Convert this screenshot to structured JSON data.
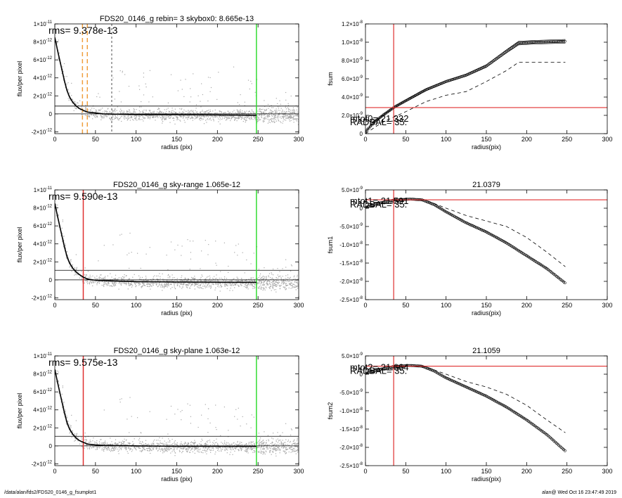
{
  "footer": {
    "left": "/data/alan/fds2/FDS20_0146_g_fsumplot1",
    "right": "alan@  Wed Oct 16 23:47:49 2019"
  },
  "colors": {
    "points": "#a9a9a9",
    "profile": "#000000",
    "marker_red": "#e03030",
    "marker_green": "#33dd33",
    "marker_orange": "#f0a040"
  },
  "chart_data": [
    {
      "type": "scatter",
      "title": "FDS20_0146_g rebin= 3    skybox0:  8.665e-13",
      "annotation": "rms= 9.378e-13",
      "xlabel": "radius (pix)",
      "ylabel": "flux/per pixel",
      "xlim": [
        0,
        300
      ],
      "ylim": [
        -2.2e-12,
        1e-11
      ],
      "xticks": [
        "0",
        "50",
        "100",
        "150",
        "200",
        "250",
        "300"
      ],
      "yticks": [
        {
          "v": 1e-11,
          "m": "1×10",
          "e": "-11"
        },
        {
          "v": 8e-12,
          "m": "8×10",
          "e": "-12"
        },
        {
          "v": 6e-12,
          "m": "6×10",
          "e": "-12"
        },
        {
          "v": 4e-12,
          "m": "4×10",
          "e": "-12"
        },
        {
          "v": 2e-12,
          "m": "2×10",
          "e": "-12"
        },
        {
          "v": 0,
          "m": "0",
          "e": ""
        },
        {
          "v": -2e-12,
          "m": "-2×10",
          "e": "-12"
        }
      ],
      "hlines": [
        8.665e-13,
        0
      ],
      "vlines": [
        {
          "x": 34,
          "color": "orange",
          "dash": true
        },
        {
          "x": 40,
          "color": "orange",
          "dash": true
        },
        {
          "x": 70,
          "color": "gray",
          "dash": true
        },
        {
          "x": 248,
          "color": "green",
          "dash": false
        }
      ],
      "profile": [
        [
          0,
          8.5e-12
        ],
        [
          3,
          7.2e-12
        ],
        [
          6,
          6e-12
        ],
        [
          9,
          4.8e-12
        ],
        [
          12,
          3.6e-12
        ],
        [
          15,
          2.6e-12
        ],
        [
          18,
          1.9e-12
        ],
        [
          22,
          1.3e-12
        ],
        [
          26,
          9e-13
        ],
        [
          30,
          6e-13
        ],
        [
          35,
          4e-13
        ],
        [
          40,
          2e-13
        ],
        [
          50,
          1e-13
        ],
        [
          60,
          0
        ],
        [
          80,
          -5e-14
        ],
        [
          100,
          -8e-14
        ],
        [
          150,
          -1e-13
        ],
        [
          200,
          -1.2e-13
        ],
        [
          248,
          -1.5e-13
        ]
      ]
    },
    {
      "type": "line",
      "title": "",
      "annotation": "mtot0= 21.332",
      "annotation2": "RADBAL=   35.",
      "xlabel": "radius(pix)",
      "ylabel": "fsum",
      "xlim": [
        0,
        300
      ],
      "ylim": [
        0,
        1.2e-08
      ],
      "xticks": [
        "0",
        "50",
        "100",
        "150",
        "200",
        "250",
        "300"
      ],
      "yticks": [
        {
          "v": 1.2e-08,
          "m": "1.2×10",
          "e": "-8"
        },
        {
          "v": 1e-08,
          "m": "1.0×10",
          "e": "-8"
        },
        {
          "v": 8e-09,
          "m": "8.0×10",
          "e": "-9"
        },
        {
          "v": 6e-09,
          "m": "6.0×10",
          "e": "-9"
        },
        {
          "v": 4e-09,
          "m": "4.0×10",
          "e": "-9"
        },
        {
          "v": 2e-09,
          "m": "2.0×10",
          "e": "-9"
        },
        {
          "v": 0,
          "m": "0",
          "e": ""
        }
      ],
      "hline": 2.85e-09,
      "vline": 35,
      "main": [
        [
          0,
          2e-10
        ],
        [
          10,
          1.2e-09
        ],
        [
          20,
          1.9e-09
        ],
        [
          35,
          2.85e-09
        ],
        [
          50,
          3.6e-09
        ],
        [
          75,
          4.8e-09
        ],
        [
          100,
          5.7e-09
        ],
        [
          125,
          6.4e-09
        ],
        [
          150,
          7.4e-09
        ],
        [
          175,
          9e-09
        ],
        [
          190,
          9.9e-09
        ],
        [
          210,
          1e-08
        ],
        [
          248,
          1.01e-08
        ]
      ],
      "dashed": [
        [
          0,
          0
        ],
        [
          20,
          1.2e-09
        ],
        [
          35,
          1.8e-09
        ],
        [
          50,
          2.4e-09
        ],
        [
          75,
          3.5e-09
        ],
        [
          100,
          4.2e-09
        ],
        [
          125,
          4.6e-09
        ],
        [
          150,
          5.7e-09
        ],
        [
          175,
          6.9e-09
        ],
        [
          190,
          7.8e-09
        ],
        [
          210,
          7.8e-09
        ],
        [
          248,
          7.8e-09
        ]
      ]
    },
    {
      "type": "scatter",
      "title": "FDS20_0146_g sky-range  1.065e-12",
      "annotation": "rms= 9.590e-13",
      "xlabel": "radius (pix)",
      "ylabel": "flux/per pixel",
      "xlim": [
        0,
        300
      ],
      "ylim": [
        -2.2e-12,
        1e-11
      ],
      "xticks": [
        "0",
        "50",
        "100",
        "150",
        "200",
        "250",
        "300"
      ],
      "yticks": [
        {
          "v": 1e-11,
          "m": "1×10",
          "e": "-11"
        },
        {
          "v": 8e-12,
          "m": "8×10",
          "e": "-12"
        },
        {
          "v": 6e-12,
          "m": "6×10",
          "e": "-12"
        },
        {
          "v": 4e-12,
          "m": "4×10",
          "e": "-12"
        },
        {
          "v": 2e-12,
          "m": "2×10",
          "e": "-12"
        },
        {
          "v": 0,
          "m": "0",
          "e": ""
        },
        {
          "v": -2e-12,
          "m": "-2×10",
          "e": "-12"
        }
      ],
      "hlines": [
        1.065e-12,
        0
      ],
      "vlines": [
        {
          "x": 35,
          "color": "red",
          "dash": false
        },
        {
          "x": 248,
          "color": "green",
          "dash": false
        }
      ],
      "profile": [
        [
          0,
          8.5e-12
        ],
        [
          3,
          7.2e-12
        ],
        [
          6,
          6e-12
        ],
        [
          9,
          4.8e-12
        ],
        [
          12,
          3.6e-12
        ],
        [
          15,
          2.6e-12
        ],
        [
          18,
          1.9e-12
        ],
        [
          22,
          1.3e-12
        ],
        [
          26,
          9e-13
        ],
        [
          30,
          6e-13
        ],
        [
          35,
          3e-13
        ],
        [
          40,
          1e-13
        ],
        [
          50,
          -5e-14
        ],
        [
          60,
          -1e-13
        ],
        [
          100,
          -2e-13
        ],
        [
          150,
          -2.4e-13
        ],
        [
          200,
          -2.6e-13
        ],
        [
          248,
          -2.8e-13
        ]
      ]
    },
    {
      "type": "line",
      "title": "21.0379",
      "annotation": "mtot1= 21.591",
      "annotation2": "RADBAL=   35.",
      "xlabel": "radius(pix)",
      "ylabel": "fsum1",
      "xlim": [
        0,
        300
      ],
      "ylim": [
        -2.5e-08,
        5e-09
      ],
      "xticks": [
        "0",
        "50",
        "100",
        "150",
        "200",
        "250",
        "300"
      ],
      "yticks": [
        {
          "v": 5e-09,
          "m": "5.0×10",
          "e": "-9"
        },
        {
          "v": 0,
          "m": "0",
          "e": ""
        },
        {
          "v": -5e-09,
          "m": "-5.0×10",
          "e": "-9"
        },
        {
          "v": -1e-08,
          "m": "-1.0×10",
          "e": "-8"
        },
        {
          "v": -1.5e-08,
          "m": "-1.5×10",
          "e": "-8"
        },
        {
          "v": -2e-08,
          "m": "-2.0×10",
          "e": "-8"
        },
        {
          "v": -2.5e-08,
          "m": "-2.5×10",
          "e": "-8"
        }
      ],
      "hline": 2.3e-09,
      "vline": 35,
      "main": [
        [
          0,
          2e-10
        ],
        [
          15,
          1.3e-09
        ],
        [
          35,
          2.2e-09
        ],
        [
          55,
          2.5e-09
        ],
        [
          70,
          2.3e-09
        ],
        [
          85,
          1e-09
        ],
        [
          100,
          -1e-09
        ],
        [
          125,
          -4e-09
        ],
        [
          150,
          -6.5e-09
        ],
        [
          175,
          -9.5e-09
        ],
        [
          200,
          -1.3e-08
        ],
        [
          225,
          -1.65e-08
        ],
        [
          248,
          -2.05e-08
        ]
      ],
      "dashed": [
        [
          0,
          0
        ],
        [
          30,
          1.5e-09
        ],
        [
          55,
          2.3e-09
        ],
        [
          75,
          2.2e-09
        ],
        [
          100,
          0
        ],
        [
          125,
          -2e-09
        ],
        [
          150,
          -3.5e-09
        ],
        [
          175,
          -5e-09
        ],
        [
          200,
          -8e-09
        ],
        [
          225,
          -1.2e-08
        ],
        [
          248,
          -1.6e-08
        ]
      ]
    },
    {
      "type": "scatter",
      "title": "FDS20_0146_g sky-plane  1.063e-12",
      "annotation": "rms= 9.575e-13",
      "xlabel": "radius (pix)",
      "ylabel": "flux/per pixel",
      "xlim": [
        0,
        300
      ],
      "ylim": [
        -2.2e-12,
        1e-11
      ],
      "xticks": [
        "0",
        "50",
        "100",
        "150",
        "200",
        "250",
        "300"
      ],
      "yticks": [
        {
          "v": 1e-11,
          "m": "1×10",
          "e": "-11"
        },
        {
          "v": 8e-12,
          "m": "8×10",
          "e": "-12"
        },
        {
          "v": 6e-12,
          "m": "6×10",
          "e": "-12"
        },
        {
          "v": 4e-12,
          "m": "4×10",
          "e": "-12"
        },
        {
          "v": 2e-12,
          "m": "2×10",
          "e": "-12"
        },
        {
          "v": 0,
          "m": "0",
          "e": ""
        },
        {
          "v": -2e-12,
          "m": "-2×10",
          "e": "-12"
        }
      ],
      "hlines": [
        1.063e-12,
        0
      ],
      "vlines": [
        {
          "x": 35,
          "color": "red",
          "dash": false
        },
        {
          "x": 248,
          "color": "green",
          "dash": false
        }
      ],
      "profile": [
        [
          0,
          8.5e-12
        ],
        [
          3,
          7.2e-12
        ],
        [
          6,
          6e-12
        ],
        [
          9,
          4.8e-12
        ],
        [
          12,
          3.6e-12
        ],
        [
          15,
          2.6e-12
        ],
        [
          18,
          1.9e-12
        ],
        [
          22,
          1.3e-12
        ],
        [
          26,
          9e-13
        ],
        [
          30,
          6e-13
        ],
        [
          35,
          4e-13
        ],
        [
          40,
          2e-13
        ],
        [
          50,
          1e-13
        ],
        [
          60,
          5e-14
        ],
        [
          100,
          0
        ],
        [
          150,
          -5e-14
        ],
        [
          200,
          -5e-14
        ],
        [
          248,
          -6e-14
        ]
      ]
    },
    {
      "type": "line",
      "title": "21.1059",
      "annotation": "mtot2= 21.664",
      "annotation2": "RADBAL=   35.",
      "xlabel": "radius(pix)",
      "ylabel": "fsum2",
      "xlim": [
        0,
        300
      ],
      "ylim": [
        -2.5e-08,
        5e-09
      ],
      "xticks": [
        "0",
        "50",
        "100",
        "150",
        "200",
        "250",
        "300"
      ],
      "yticks": [
        {
          "v": 5e-09,
          "m": "5.0×10",
          "e": "-9"
        },
        {
          "v": 0,
          "m": "0",
          "e": ""
        },
        {
          "v": -5e-09,
          "m": "-5.0×10",
          "e": "-9"
        },
        {
          "v": -1e-08,
          "m": "-1.0×10",
          "e": "-8"
        },
        {
          "v": -1.5e-08,
          "m": "-1.5×10",
          "e": "-8"
        },
        {
          "v": -2e-08,
          "m": "-2.0×10",
          "e": "-8"
        },
        {
          "v": -2.5e-08,
          "m": "-2.5×10",
          "e": "-8"
        }
      ],
      "hline": 2.2e-09,
      "vline": 35,
      "main": [
        [
          0,
          2e-10
        ],
        [
          15,
          1.2e-09
        ],
        [
          35,
          2.1e-09
        ],
        [
          55,
          2.4e-09
        ],
        [
          70,
          2.2e-09
        ],
        [
          85,
          9e-10
        ],
        [
          100,
          -1e-09
        ],
        [
          125,
          -3.5e-09
        ],
        [
          150,
          -6e-09
        ],
        [
          175,
          -9e-09
        ],
        [
          200,
          -1.25e-08
        ],
        [
          225,
          -1.65e-08
        ],
        [
          248,
          -2.1e-08
        ]
      ],
      "dashed": [
        [
          0,
          0
        ],
        [
          30,
          1.4e-09
        ],
        [
          55,
          2.2e-09
        ],
        [
          75,
          2e-09
        ],
        [
          100,
          0
        ],
        [
          125,
          -2e-09
        ],
        [
          150,
          -3.5e-09
        ],
        [
          175,
          -5.5e-09
        ],
        [
          200,
          -8.5e-09
        ],
        [
          225,
          -1.25e-08
        ],
        [
          248,
          -1.6e-08
        ]
      ]
    }
  ]
}
